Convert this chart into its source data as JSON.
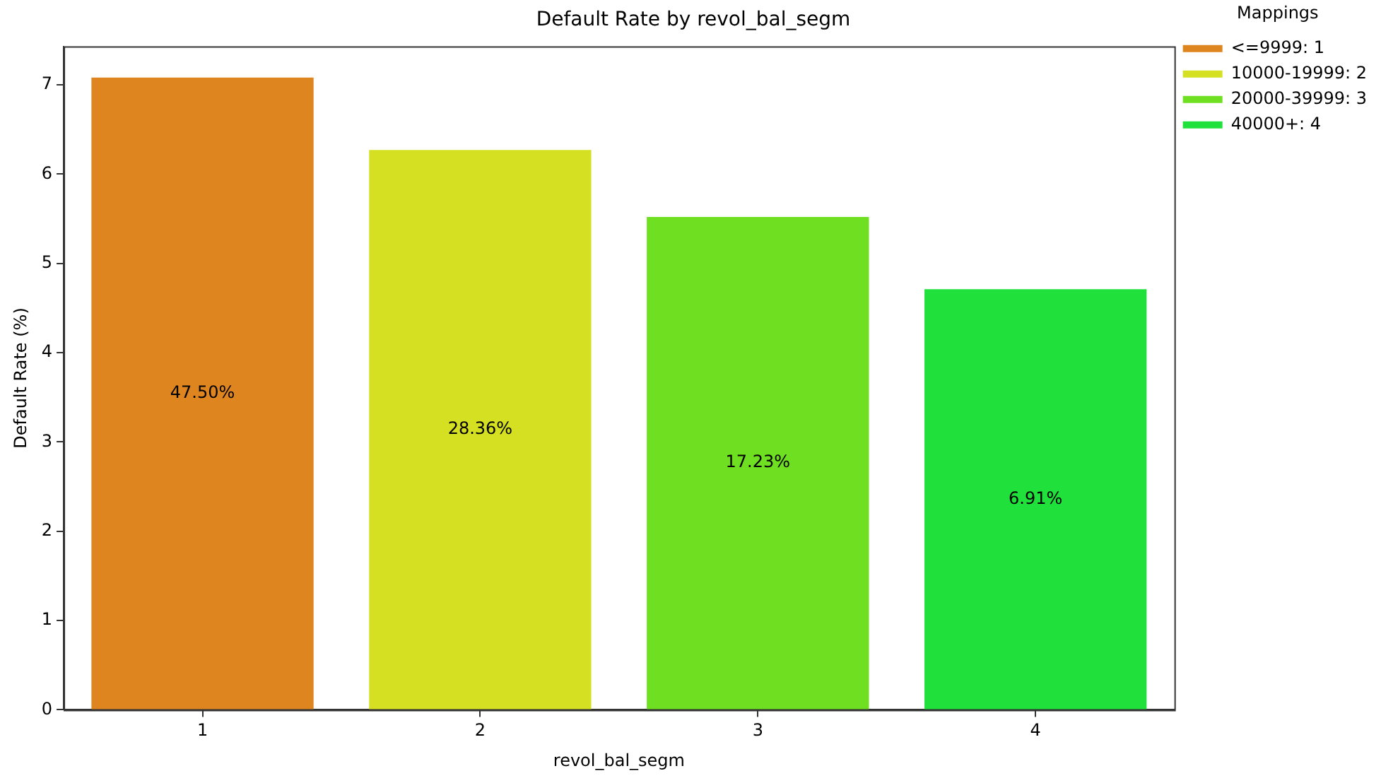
{
  "chart_data": {
    "type": "bar",
    "title": "Default Rate by revol_bal_segm",
    "xlabel": "revol_bal_segm",
    "ylabel": "Default Rate (%)",
    "legend_title": "Mappings",
    "categories": [
      "1",
      "2",
      "3",
      "4"
    ],
    "series": [
      {
        "name": "<=9999: 1",
        "color": "#df8520",
        "values": [
          7.08,
          null,
          null,
          null
        ]
      },
      {
        "name": "10000-19999: 2",
        "color": "#d4e021",
        "values": [
          null,
          6.27,
          null,
          null
        ]
      },
      {
        "name": "20000-39999: 3",
        "color": "#6ee021",
        "values": [
          null,
          null,
          5.52,
          null
        ]
      },
      {
        "name": "40000+: 4",
        "color": "#20e03c",
        "values": [
          null,
          null,
          null,
          4.71
        ]
      }
    ],
    "annotations": [
      "47.50%",
      "28.36%",
      "17.23%",
      "6.91%"
    ],
    "ylim": [
      0,
      7.43
    ],
    "yticks": [
      0,
      1,
      2,
      3,
      4,
      5,
      6,
      7
    ],
    "legend": "top right"
  }
}
